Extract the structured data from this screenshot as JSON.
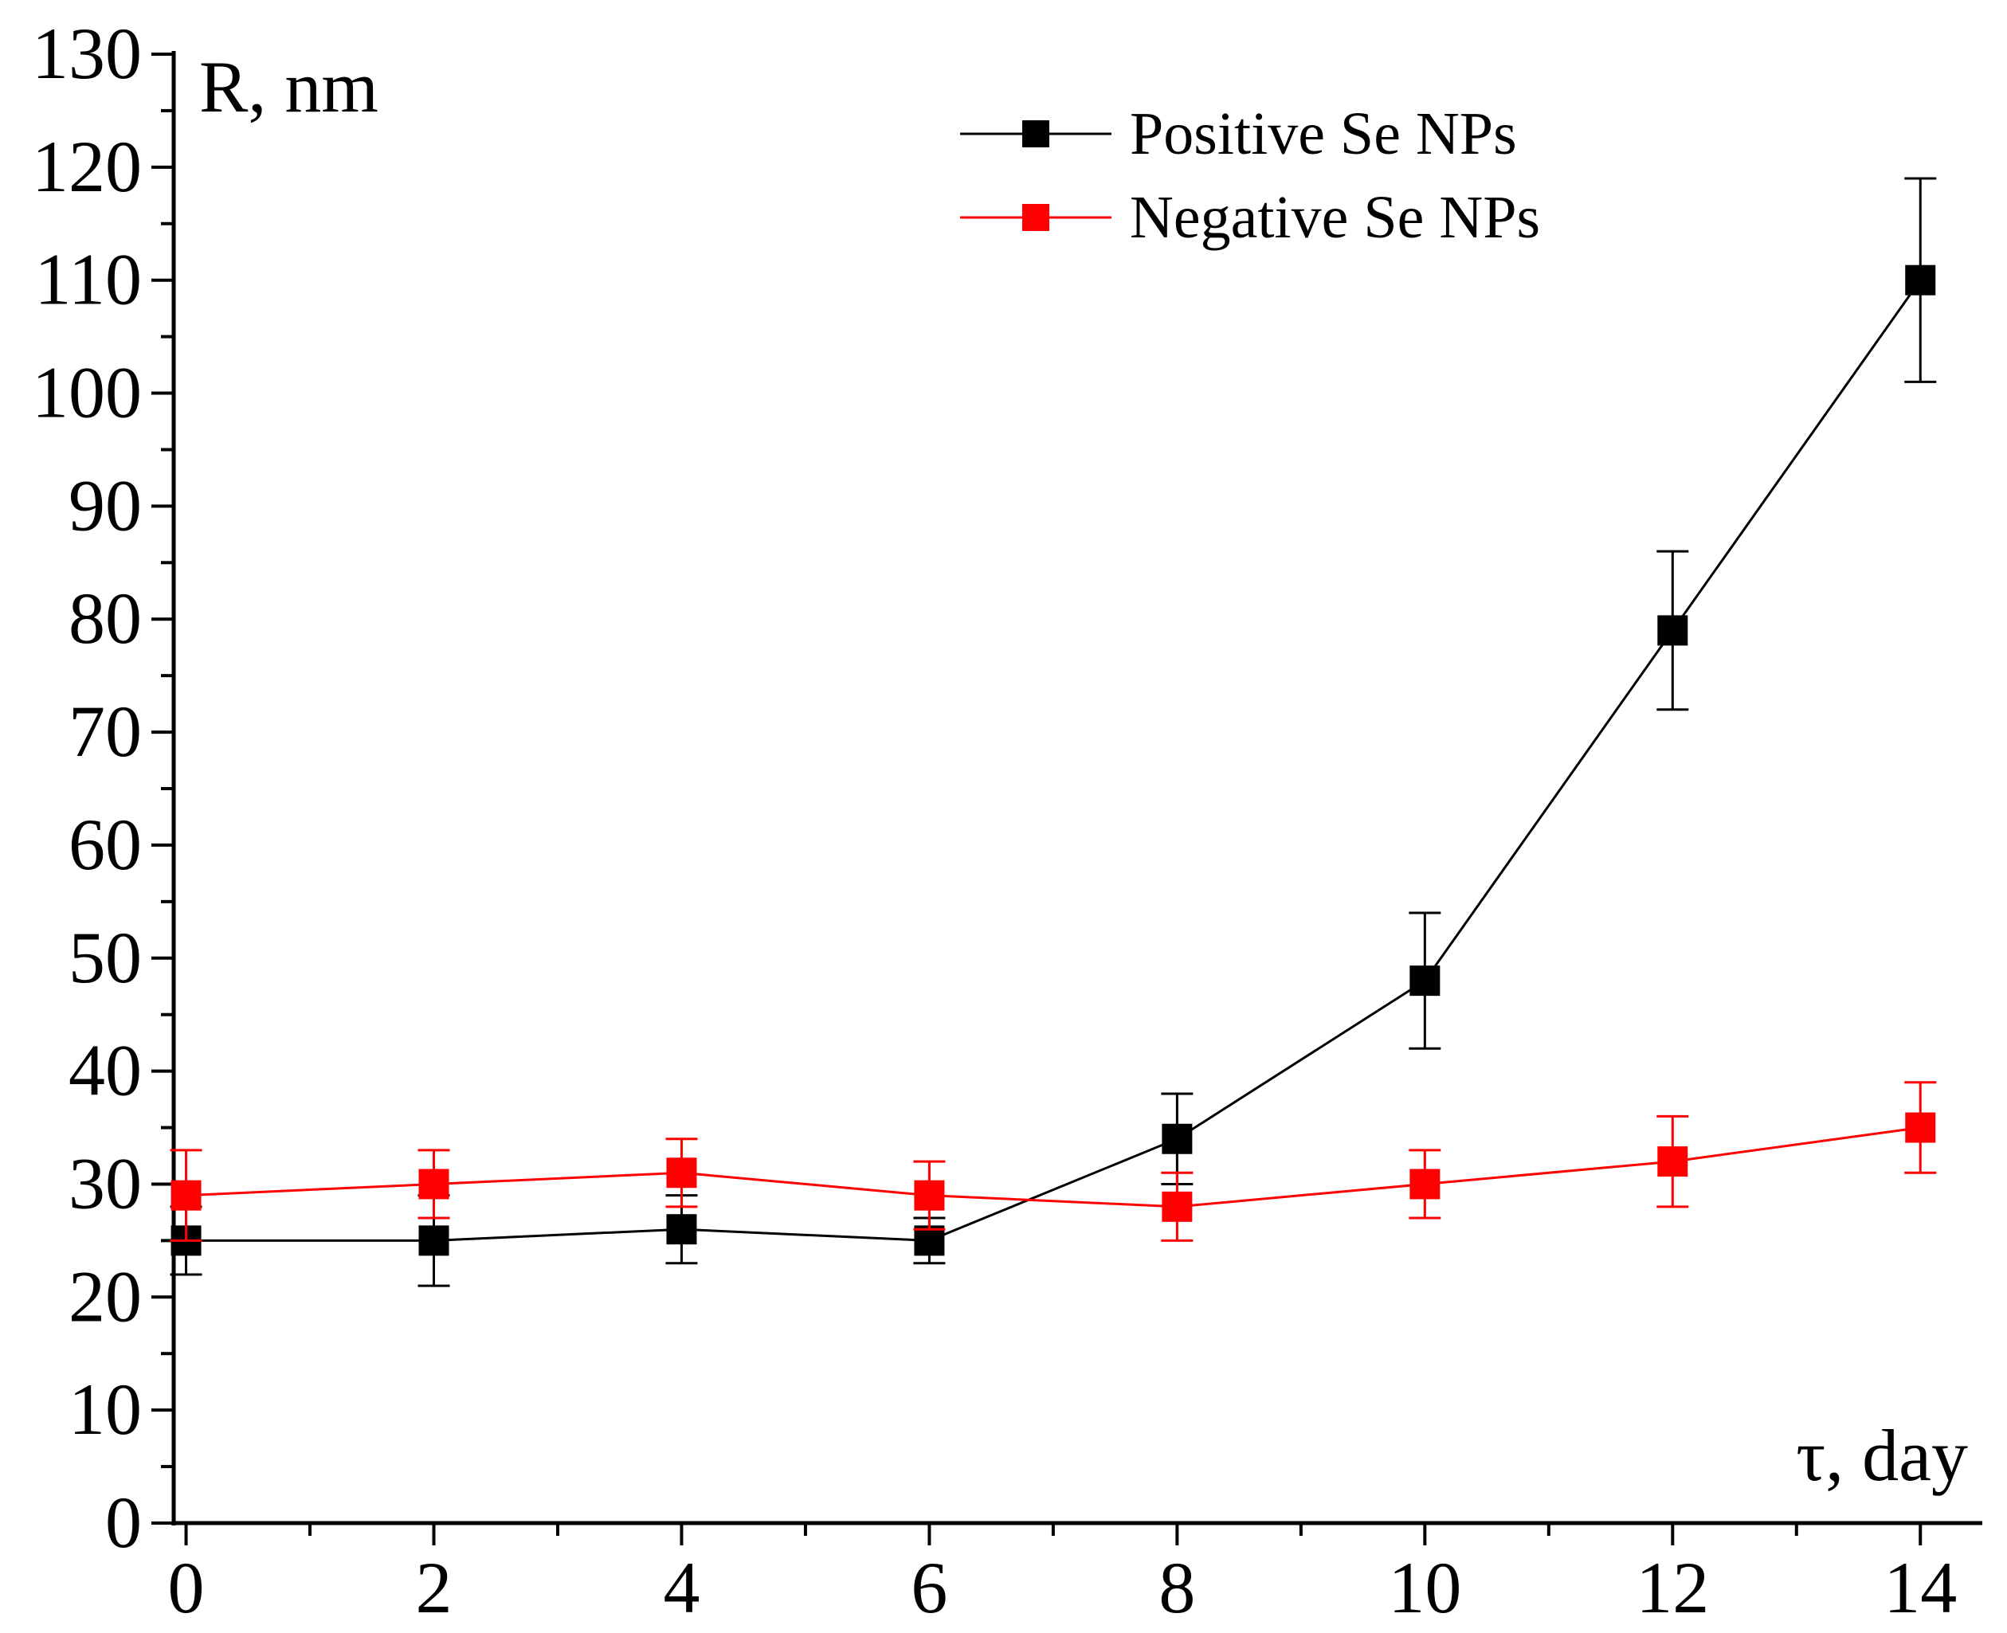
{
  "chart_data": {
    "type": "line",
    "title": "",
    "xlabel": "τ, day",
    "ylabel": "R, nm",
    "xlim": [
      -0.1,
      14.5
    ],
    "ylim": [
      0,
      130
    ],
    "x_ticks": [
      0,
      2,
      4,
      6,
      8,
      10,
      12,
      14
    ],
    "x_tick_labels": [
      "0",
      "2",
      "4",
      "6",
      "8",
      "10",
      "12",
      "14"
    ],
    "y_ticks": [
      0,
      10,
      20,
      30,
      40,
      50,
      60,
      70,
      80,
      90,
      100,
      110,
      120,
      130
    ],
    "y_tick_labels": [
      "0",
      "10",
      "20",
      "30",
      "40",
      "50",
      "60",
      "70",
      "80",
      "90",
      "100",
      "110",
      "120",
      "130"
    ],
    "x": [
      0,
      2,
      4,
      6,
      8,
      10,
      12,
      14
    ],
    "legend_position": "top-right",
    "grid": false,
    "series": [
      {
        "name": "Positive Se NPs",
        "color": "#000000",
        "marker": "square",
        "values": [
          25,
          25,
          26,
          25,
          34,
          48,
          79,
          110
        ],
        "error_low": [
          22,
          21,
          23,
          23,
          30,
          42,
          72,
          101
        ],
        "error_high": [
          28,
          29,
          29,
          27,
          38,
          54,
          86,
          119
        ]
      },
      {
        "name": "Negative Se NPs",
        "color": "#ff0000",
        "marker": "square",
        "values": [
          29,
          30,
          31,
          29,
          28,
          30,
          32,
          35
        ],
        "error_low": [
          25,
          27,
          28,
          26,
          25,
          27,
          28,
          31
        ],
        "error_high": [
          33,
          33,
          34,
          32,
          31,
          33,
          36,
          39
        ]
      }
    ]
  }
}
